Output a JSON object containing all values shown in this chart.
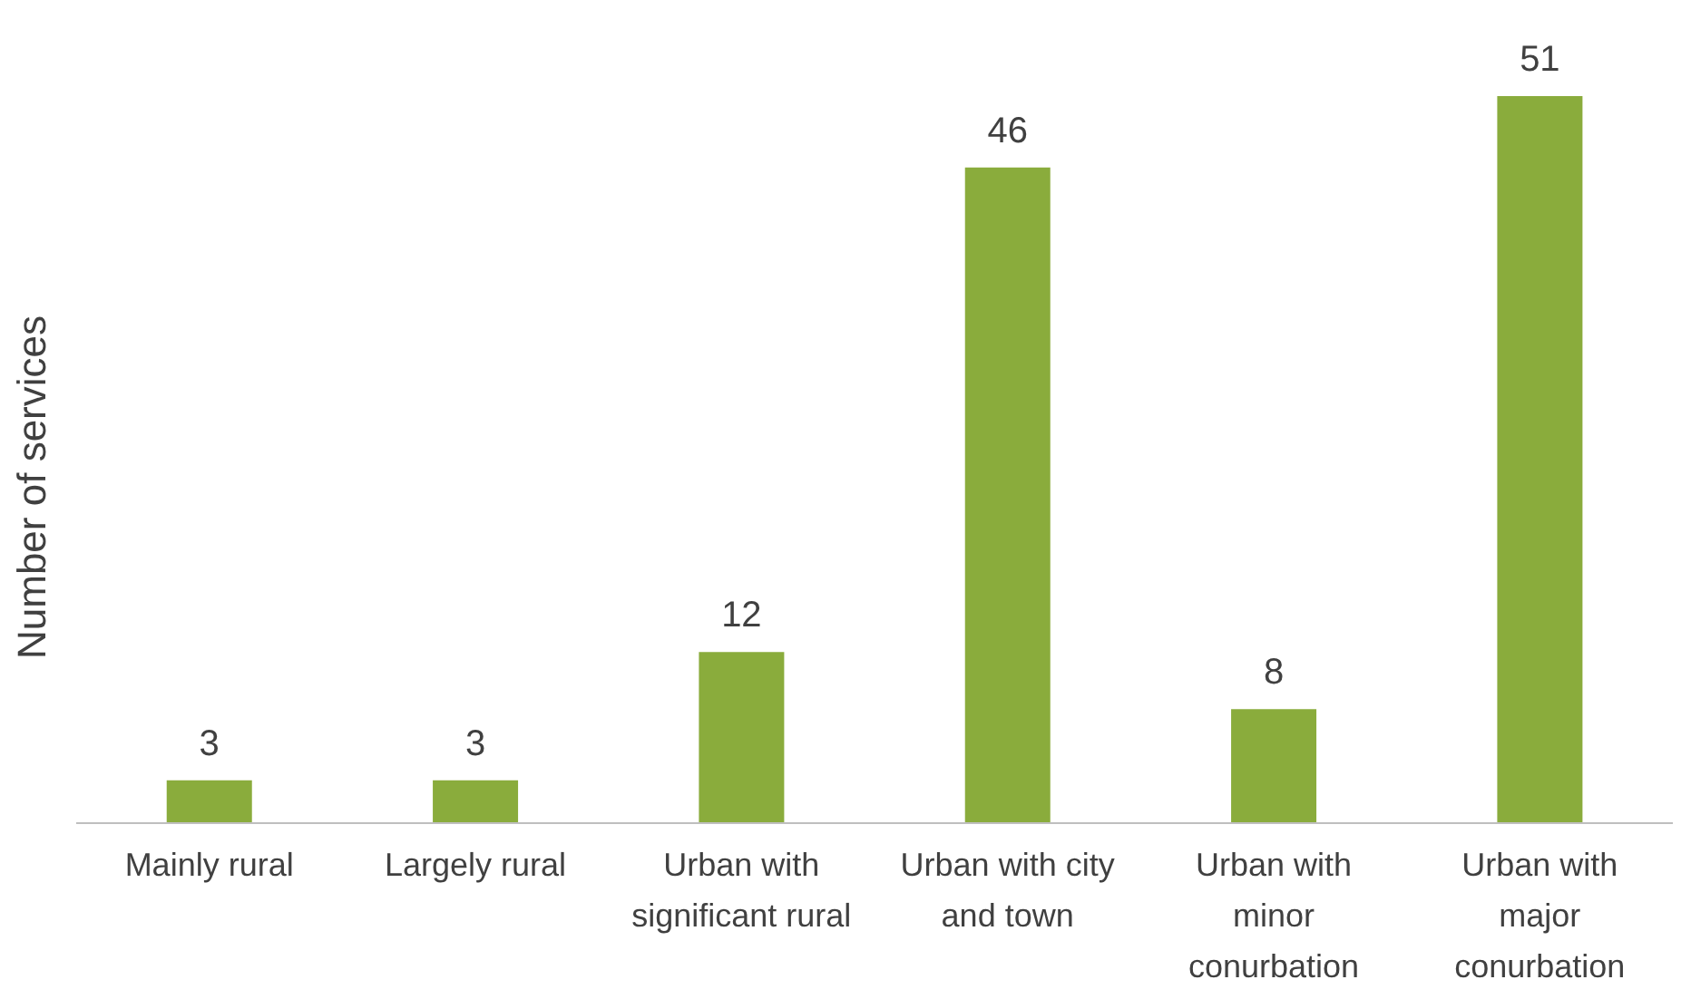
{
  "chart_data": {
    "type": "bar",
    "ylabel": "Number of services",
    "categories": [
      "Mainly rural",
      "Largely rural",
      "Urban with significant rural",
      "Urban with city and town",
      "Urban with minor conurbation",
      "Urban with major conurbation"
    ],
    "values": [
      3,
      3,
      12,
      46,
      8,
      51
    ],
    "color": "#8aac3c",
    "data_labels": true,
    "grid": false,
    "legend": false
  }
}
